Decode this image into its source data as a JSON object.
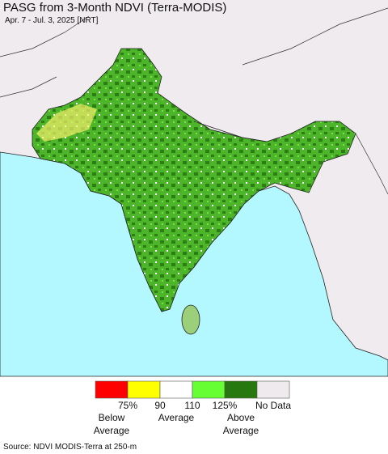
{
  "header": {
    "title": "PASG from 3-Month NDVI (Terra-MODIS)",
    "subtitle": "Apr. 7 - Jul. 3, 2025 [NRT]"
  },
  "legend": {
    "colors": [
      "#ff0000",
      "#ffff00",
      "#ffffff",
      "#66ff33",
      "#287810",
      "#eeeaee"
    ],
    "tick_labels": [
      "75%",
      "90",
      "110",
      "125%"
    ],
    "no_data": "No Data",
    "groups": [
      [
        "Below",
        "Average"
      ],
      [
        "Average"
      ],
      [
        "Above",
        "Average"
      ]
    ]
  },
  "source": "Source: NDVI MODIS-Terra at 250-m"
}
